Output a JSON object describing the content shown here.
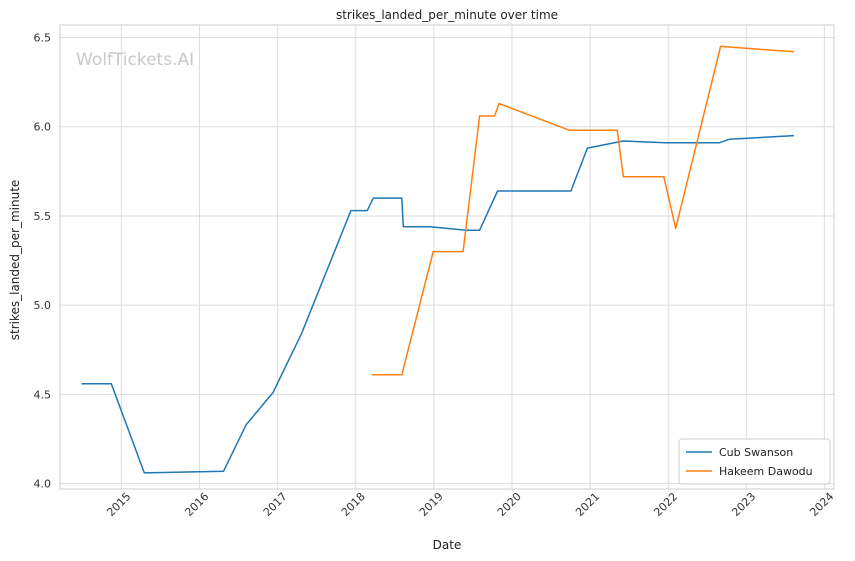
{
  "watermark": "WolfTickets.AI",
  "chart_data": {
    "type": "line",
    "title": "strikes_landed_per_minute over time",
    "xlabel": "Date",
    "ylabel": "strikes_landed_per_minute",
    "x_ticks": [
      "2015",
      "2016",
      "2017",
      "2018",
      "2019",
      "2020",
      "2021",
      "2022",
      "2023",
      "2024"
    ],
    "y_ticks": [
      "4.0",
      "4.5",
      "5.0",
      "5.5",
      "6.0",
      "6.5"
    ],
    "xlim": [
      "2014-03-20",
      "2024-02-15"
    ],
    "ylim": [
      3.97,
      6.57
    ],
    "grid": true,
    "legend_position": "bottom-right",
    "series": [
      {
        "name": "Cub Swanson",
        "color": "#1f77b4",
        "points": [
          [
            "2014-06-28",
            4.56
          ],
          [
            "2014-11-15",
            4.56
          ],
          [
            "2015-04-18",
            4.06
          ],
          [
            "2016-04-23",
            4.07
          ],
          [
            "2016-08-06",
            4.33
          ],
          [
            "2016-12-10",
            4.51
          ],
          [
            "2017-04-22",
            4.84
          ],
          [
            "2017-12-09",
            5.53
          ],
          [
            "2018-02-24",
            5.53
          ],
          [
            "2018-03-24",
            5.6
          ],
          [
            "2018-08-04",
            5.6
          ],
          [
            "2018-08-11",
            5.44
          ],
          [
            "2018-12-15",
            5.44
          ],
          [
            "2019-06-01",
            5.42
          ],
          [
            "2019-08-03",
            5.42
          ],
          [
            "2019-10-26",
            5.64
          ],
          [
            "2020-10-03",
            5.64
          ],
          [
            "2020-12-19",
            5.88
          ],
          [
            "2021-06-05",
            5.92
          ],
          [
            "2021-12-18",
            5.91
          ],
          [
            "2022-08-27",
            5.91
          ],
          [
            "2022-10-15",
            5.93
          ],
          [
            "2023-08-12",
            5.95
          ]
        ]
      },
      {
        "name": "Hakeem Dawodu",
        "color": "#ff7f0e",
        "points": [
          [
            "2018-03-17",
            4.61
          ],
          [
            "2018-08-04",
            4.61
          ],
          [
            "2018-12-29",
            5.3
          ],
          [
            "2019-05-18",
            5.3
          ],
          [
            "2019-08-03",
            6.06
          ],
          [
            "2019-10-12",
            6.06
          ],
          [
            "2019-11-02",
            6.13
          ],
          [
            "2020-09-26",
            5.98
          ],
          [
            "2021-05-08",
            5.98
          ],
          [
            "2021-06-05",
            5.72
          ],
          [
            "2021-12-11",
            5.72
          ],
          [
            "2022-02-05",
            5.43
          ],
          [
            "2022-09-03",
            6.45
          ],
          [
            "2023-08-12",
            6.42
          ]
        ]
      }
    ]
  }
}
